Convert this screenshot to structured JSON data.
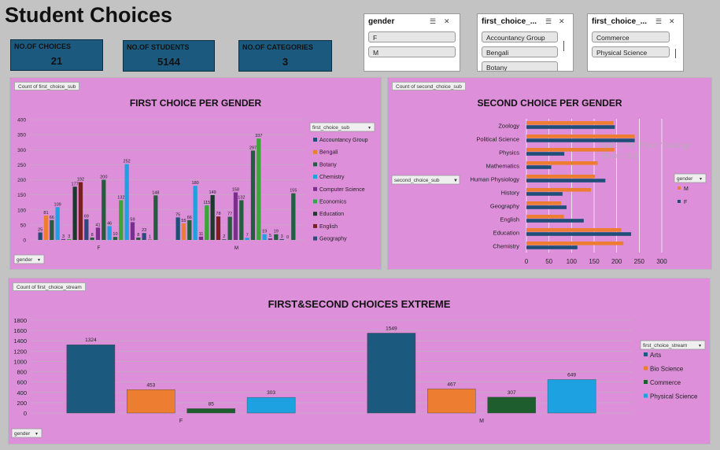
{
  "page_title": "Student Choices",
  "kpis": [
    {
      "label": "NO.OF CHOICES",
      "value": "21"
    },
    {
      "label": "NO.OF STUDENTS",
      "value": "5144"
    },
    {
      "label": "NO.OF CATEGORIES",
      "value": "3"
    }
  ],
  "slicers": [
    {
      "title": "gender",
      "items": [
        "F",
        "M"
      ]
    },
    {
      "title": "first_choice_...",
      "items": [
        "Accountancy Group",
        "Bengali",
        "Botany"
      ]
    },
    {
      "title": "first_choice_...",
      "items": [
        "Commerce",
        "Physical Science"
      ]
    }
  ],
  "colors": {
    "page_bg": "#c3c3c3",
    "panel_bg": "#dd8fda",
    "kpi_bg": "#1b5a7e",
    "accountancy": "#1f4e79",
    "bengali": "#ed7d31",
    "botany": "#255e3e",
    "chemistry": "#1da1e0",
    "computer_science": "#7b2e8e",
    "economics": "#3aa63a",
    "education": "#1b3a2c",
    "english": "#7a1f1f",
    "geography": "#2f4a7a",
    "M": "#ed7d31",
    "F": "#1f4e79",
    "arts": "#1b5a7e",
    "bio_science": "#ed7d31",
    "commerce": "#1e5e2e",
    "physical_science": "#1da1e0"
  },
  "chart1": {
    "field_button": "Count of first_choice_sub",
    "title": "FIRST CHOICE PER GENDER",
    "legend_filter": "first_choice_sub",
    "axis_button": "gender"
  },
  "chart2": {
    "field_button": "Count of second_choice_sub",
    "title": "SECOND CHOICE PER GENDER",
    "filter_button": "second_choice_sub",
    "legend_filter": "gender",
    "tooltip_line1": "Series \"M\" Point \"Zoology\"",
    "tooltip_line2": "Value: 193"
  },
  "chart3": {
    "field_button": "Count of first_choice_stream",
    "title": "FIRST&SECOND CHOICES EXTREME",
    "legend_filter": "first_choice_stream",
    "axis_button": "gender"
  },
  "chart_data": [
    {
      "type": "bar",
      "title": "FIRST CHOICE PER GENDER",
      "categories": [
        "F",
        "M"
      ],
      "ylim": [
        0,
        400
      ],
      "yticks": [
        0,
        50,
        100,
        150,
        200,
        250,
        300,
        350,
        400
      ],
      "grid": true,
      "legend": "right",
      "series": [
        {
          "name": "Accountancy Group",
          "color_key": "accountancy",
          "values": [
            25,
            75
          ]
        },
        {
          "name": "Bengali",
          "color_key": "bengali",
          "values": [
            81,
            55
          ]
        },
        {
          "name": "Botany",
          "color_key": "botany",
          "values": [
            66,
            66
          ]
        },
        {
          "name": "Chemistry",
          "color_key": "chemistry",
          "values": [
            109,
            180
          ]
        },
        {
          "name": "Computer Science",
          "color_key": "computer_science",
          "values": [
            3,
            11
          ]
        },
        {
          "name": "Economics",
          "color_key": "economics",
          "values": [
            3,
            115
          ]
        },
        {
          "name": "Education",
          "color_key": "education",
          "values": [
            177,
            149
          ]
        },
        {
          "name": "English",
          "color_key": "english",
          "values": [
            192,
            78
          ]
        },
        {
          "name": "Geography",
          "color_key": "geography",
          "values": [
            69,
            2
          ]
        },
        {
          "name": "",
          "color_key": "botany",
          "values": [
            8,
            77
          ]
        },
        {
          "name": "",
          "color_key": "computer_science",
          "values": [
            41,
            158
          ]
        },
        {
          "name": "",
          "color_key": "botany",
          "values": [
            200,
            132
          ]
        },
        {
          "name": "",
          "color_key": "chemistry",
          "values": [
            46,
            7
          ]
        },
        {
          "name": "",
          "color_key": "botany",
          "values": [
            10,
            297
          ]
        },
        {
          "name": "",
          "color_key": "economics",
          "values": [
            132,
            337
          ]
        },
        {
          "name": "",
          "color_key": "chemistry",
          "values": [
            252,
            19
          ]
        },
        {
          "name": "",
          "color_key": "computer_science",
          "values": [
            59,
            5
          ]
        },
        {
          "name": "",
          "color_key": "botany",
          "values": [
            8,
            19
          ]
        },
        {
          "name": "",
          "color_key": "geography",
          "values": [
            23,
            3
          ]
        },
        {
          "name": "",
          "color_key": "english",
          "values": [
            1,
            0
          ]
        },
        {
          "name": "",
          "color_key": "botany",
          "values": [
            148,
            155
          ]
        }
      ]
    },
    {
      "type": "bar",
      "orientation": "horizontal",
      "title": "SECOND CHOICE PER GENDER",
      "categories": [
        "Zoology",
        "Political Science",
        "Physics",
        "Mathematics",
        "Human Physiology",
        "History",
        "Geography",
        "English",
        "Education",
        "Chemistry"
      ],
      "xlim": [
        0,
        300
      ],
      "xticks": [
        0,
        50,
        100,
        150,
        200,
        250,
        300
      ],
      "grid": true,
      "legend": "right",
      "series": [
        {
          "name": "M",
          "color_key": "M",
          "values": [
            193,
            240,
            195,
            158,
            152,
            143,
            77,
            83,
            210,
            215
          ]
        },
        {
          "name": "F",
          "color_key": "F",
          "values": [
            196,
            240,
            84,
            55,
            175,
            80,
            89,
            127,
            232,
            113
          ]
        }
      ]
    },
    {
      "type": "bar",
      "title": "FIRST&SECOND CHOICES EXTREME",
      "categories": [
        "F",
        "M"
      ],
      "ylim": [
        0,
        1800
      ],
      "yticks": [
        0,
        200,
        400,
        600,
        800,
        1000,
        1200,
        1400,
        1600,
        1800
      ],
      "grid": true,
      "legend": "right",
      "series": [
        {
          "name": "Arts",
          "color_key": "arts",
          "values": [
            1324,
            1549
          ]
        },
        {
          "name": "Bio Science",
          "color_key": "bio_science",
          "values": [
            453,
            467
          ]
        },
        {
          "name": "Commerce",
          "color_key": "commerce",
          "values": [
            85,
            307
          ]
        },
        {
          "name": "Physical Science",
          "color_key": "physical_science",
          "values": [
            303,
            649
          ]
        }
      ]
    }
  ]
}
